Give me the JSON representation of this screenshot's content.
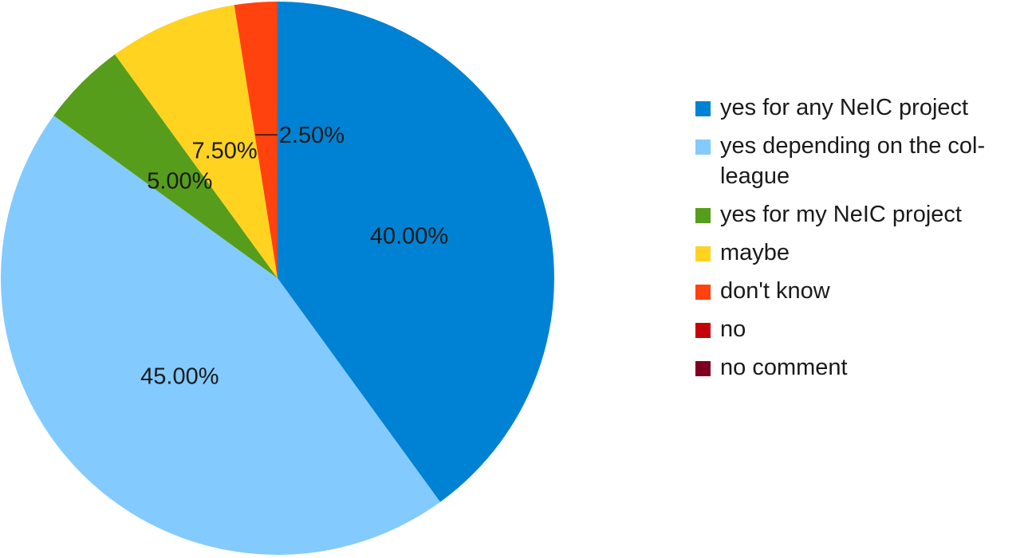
{
  "chart_data": {
    "type": "pie",
    "categories": [
      "yes for any NeIC project",
      "yes depending on the colleague",
      "yes for my NeIC project",
      "maybe",
      "don't know",
      "no",
      "no comment"
    ],
    "values": [
      40.0,
      45.0,
      5.0,
      7.5,
      2.5,
      0.0,
      0.0
    ],
    "data_labels": [
      "40.00%",
      "45.00%",
      "5.00%",
      "7.50%",
      "2.50%",
      "",
      ""
    ],
    "colors": [
      "#0082d4",
      "#83caff",
      "#579d1c",
      "#ffd320",
      "#ff420e",
      "#c5000b",
      "#7e0021"
    ],
    "legend": {
      "position": "right",
      "items": [
        {
          "label_lines": [
            "yes for any NeIC project"
          ]
        },
        {
          "label_lines": [
            "yes depending on the col-",
            "league"
          ]
        },
        {
          "label_lines": [
            "yes for my NeIC project"
          ]
        },
        {
          "label_lines": [
            "maybe"
          ]
        },
        {
          "label_lines": [
            "don't know"
          ]
        },
        {
          "label_lines": [
            "no"
          ]
        },
        {
          "label_lines": [
            "no comment"
          ]
        }
      ]
    }
  }
}
